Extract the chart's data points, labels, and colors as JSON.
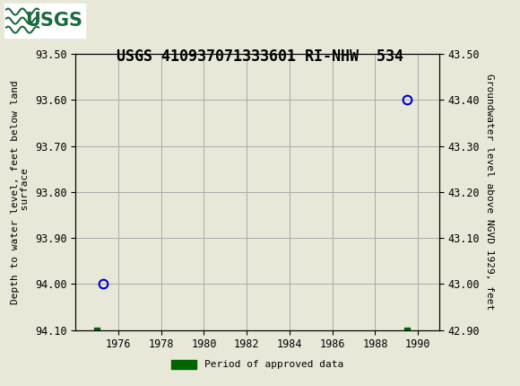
{
  "title": "USGS 410937071333601 RI-NHW  534",
  "ylabel_left": "Depth to water level, feet below land\n surface",
  "ylabel_right": "Groundwater level above NGVD 1929, feet",
  "ylim_left": [
    93.5,
    94.1
  ],
  "ylim_right": [
    43.5,
    42.9
  ],
  "xlim": [
    1974.0,
    1991.0
  ],
  "xticks": [
    1976,
    1978,
    1980,
    1982,
    1984,
    1986,
    1988,
    1990
  ],
  "yticks_left": [
    93.5,
    93.6,
    93.7,
    93.8,
    93.9,
    94.0,
    94.1
  ],
  "yticks_right": [
    43.5,
    43.4,
    43.3,
    43.2,
    43.1,
    43.0,
    42.9
  ],
  "circle_points_x": [
    1975.3,
    1989.5
  ],
  "circle_points_y": [
    94.0,
    93.6
  ],
  "square_points_x": [
    1975.0,
    1989.5
  ],
  "square_points_y": [
    94.1,
    94.1
  ],
  "circle_color": "#0000cc",
  "square_color": "#006400",
  "header_color": "#1a6b3c",
  "background_color": "#e8e8d8",
  "plot_bg_color": "#e8e8d8",
  "grid_color": "#aaaaaa",
  "legend_label": "Period of approved data",
  "font_color": "#000000",
  "title_fontsize": 12,
  "axis_label_fontsize": 8,
  "tick_fontsize": 8.5
}
